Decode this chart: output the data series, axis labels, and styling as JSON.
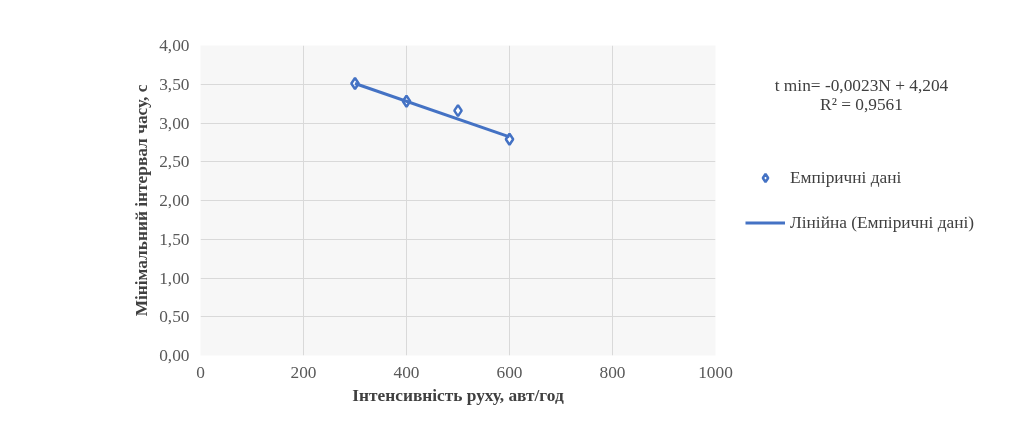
{
  "chart_data": {
    "type": "scatter",
    "xlabel": "Інтенсивність руху, авт/год",
    "ylabel": "Мінімальний інтервал часу, с",
    "series": [
      {
        "name": "Емпіричні дані",
        "type": "scatter",
        "color": "#4472c4",
        "marker": "diamond",
        "x": [
          300,
          400,
          500,
          600
        ],
        "values": [
          3.51,
          3.28,
          3.16,
          2.79
        ]
      },
      {
        "name": "Лінійна (Емпіричні дані)",
        "type": "line",
        "color": "#4472c4",
        "marker": "none",
        "x": [
          300,
          600
        ],
        "values": [
          3.51,
          2.82
        ]
      }
    ],
    "xlim": [
      0,
      1000
    ],
    "xticks": [
      0,
      200,
      400,
      600,
      800,
      1000
    ],
    "ylim": [
      0,
      4
    ],
    "yticks": [
      {
        "value": 0,
        "label": "0,00"
      },
      {
        "value": 0.5,
        "label": "0,50"
      },
      {
        "value": 1,
        "label": "1,00"
      },
      {
        "value": 1.5,
        "label": "1,50"
      },
      {
        "value": 2,
        "label": "2,00"
      },
      {
        "value": 2.5,
        "label": "2,50"
      },
      {
        "value": 3,
        "label": "3,00"
      },
      {
        "value": 3.5,
        "label": "3,50"
      },
      {
        "value": 4,
        "label": "4,00"
      }
    ],
    "grid": true,
    "legend": "right",
    "annotations": [
      "t min= -0,0023N + 4,204",
      "R² = 0,9561"
    ]
  }
}
